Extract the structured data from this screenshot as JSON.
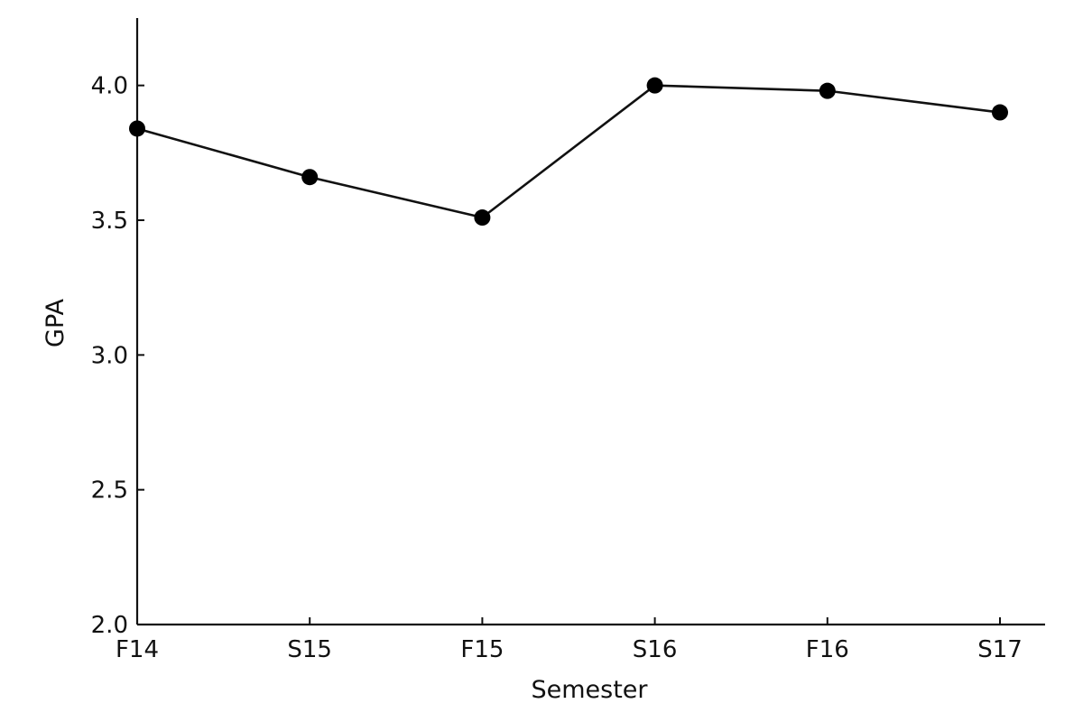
{
  "chart_data": {
    "type": "line",
    "title": "",
    "xlabel": "Semester",
    "ylabel": "GPA",
    "categories": [
      "F14",
      "S15",
      "F15",
      "S16",
      "F16",
      "S17"
    ],
    "values": [
      3.84,
      3.66,
      3.51,
      4.0,
      3.98,
      3.9
    ],
    "ylim": [
      2.0,
      4.25
    ],
    "yticks": [
      2.0,
      2.5,
      3.0,
      3.5,
      4.0
    ],
    "ytick_labels": [
      "2.0",
      "2.5",
      "3.0",
      "3.5",
      "4.0"
    ],
    "grid": false,
    "legend": "none",
    "line_color": "#111111",
    "marker_color": "#000000"
  }
}
